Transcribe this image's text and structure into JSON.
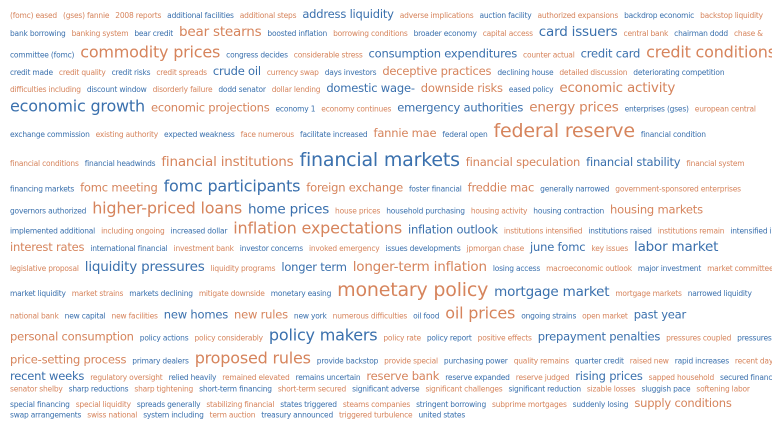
{
  "palette": {
    "blue": "#3a70ad",
    "orange": "#d6845c"
  },
  "rows": [
    [
      [
        "(fomc) eased",
        1,
        "orange"
      ],
      [
        "(gses) fannie",
        1,
        "orange"
      ],
      [
        "2008 reports",
        1,
        "orange"
      ],
      [
        "additional facilities",
        1,
        "blue"
      ],
      [
        "additional steps",
        1,
        "orange"
      ],
      [
        "address liquidity",
        3,
        "blue"
      ],
      [
        "adverse implications",
        1,
        "orange"
      ],
      [
        "auction facility",
        1,
        "blue"
      ],
      [
        "authorized expansions",
        1,
        "orange"
      ],
      [
        "backdrop economic",
        1,
        "blue"
      ],
      [
        "backstop liquidity",
        1,
        "orange"
      ]
    ],
    [
      [
        "bank borrowing",
        1,
        "blue"
      ],
      [
        "banking system",
        1,
        "orange"
      ],
      [
        "bear credit",
        1,
        "blue"
      ],
      [
        "bear stearns",
        4,
        "orange"
      ],
      [
        "boosted inflation",
        1,
        "blue"
      ],
      [
        "borrowing conditions",
        1,
        "orange"
      ],
      [
        "broader economy",
        1,
        "blue"
      ],
      [
        "capital access",
        1,
        "orange"
      ],
      [
        "card issuers",
        4,
        "blue"
      ],
      [
        "central bank",
        1,
        "orange"
      ],
      [
        "chairman dodd",
        1,
        "blue"
      ],
      [
        "chase &",
        1,
        "orange"
      ]
    ],
    [
      [
        "committee (fomc)",
        1,
        "blue"
      ],
      [
        "commodity prices",
        5,
        "orange"
      ],
      [
        "congress decides",
        1,
        "blue"
      ],
      [
        "considerable stress",
        1,
        "orange"
      ],
      [
        "consumption expenditures",
        3,
        "blue"
      ],
      [
        "counter actual",
        1,
        "orange"
      ],
      [
        "credit card",
        3,
        "blue"
      ],
      [
        "credit conditions",
        5,
        "orange"
      ]
    ],
    [
      [
        "credit made",
        1,
        "blue"
      ],
      [
        "credit quality",
        1,
        "orange"
      ],
      [
        "credit risks",
        1,
        "blue"
      ],
      [
        "credit spreads",
        1,
        "orange"
      ],
      [
        "crude oil",
        3,
        "blue"
      ],
      [
        "currency swap",
        1,
        "orange"
      ],
      [
        "days investors",
        1,
        "blue"
      ],
      [
        "deceptive practices",
        3,
        "orange"
      ],
      [
        "declining house",
        1,
        "blue"
      ],
      [
        "detailed discussion",
        1,
        "orange"
      ],
      [
        "deteriorating competition",
        1,
        "blue"
      ]
    ],
    [
      [
        "difficulties including",
        1,
        "orange"
      ],
      [
        "discount window",
        1,
        "blue"
      ],
      [
        "disorderly failure",
        1,
        "orange"
      ],
      [
        "dodd senator",
        1,
        "blue"
      ],
      [
        "dollar lending",
        1,
        "orange"
      ],
      [
        "domestic wage-",
        3,
        "blue"
      ],
      [
        "downside risks",
        3,
        "orange"
      ],
      [
        "eased policy",
        1,
        "blue"
      ],
      [
        "economic activity",
        4,
        "orange"
      ]
    ],
    [
      [
        "economic growth",
        5,
        "blue"
      ],
      [
        "economic projections",
        3,
        "orange"
      ],
      [
        "economy 1",
        1,
        "blue"
      ],
      [
        "economy continues",
        1,
        "orange"
      ],
      [
        "emergency authorities",
        3,
        "blue"
      ],
      [
        "energy prices",
        4,
        "orange"
      ],
      [
        "enterprises (gses)",
        1,
        "blue"
      ],
      [
        "european central",
        1,
        "orange"
      ]
    ],
    [
      [
        "exchange commission",
        1,
        "blue"
      ],
      [
        "existing authority",
        1,
        "orange"
      ],
      [
        "expected weakness",
        1,
        "blue"
      ],
      [
        "face numerous",
        1,
        "orange"
      ],
      [
        "facilitate increased",
        1,
        "blue"
      ],
      [
        "fannie mae",
        3,
        "orange"
      ],
      [
        "federal open",
        1,
        "blue"
      ],
      [
        "federal reserve",
        6,
        "orange"
      ],
      [
        "financial condition",
        1,
        "blue"
      ]
    ],
    [
      [
        "financial conditions",
        1,
        "orange"
      ],
      [
        "financial headwinds",
        1,
        "blue"
      ],
      [
        "financial institutions",
        4,
        "orange"
      ],
      [
        "financial markets",
        6,
        "blue"
      ],
      [
        "financial speculation",
        3,
        "orange"
      ],
      [
        "financial stability",
        3,
        "blue"
      ],
      [
        "financial system",
        1,
        "orange"
      ]
    ],
    [
      [
        "financing markets",
        1,
        "blue"
      ],
      [
        "fomc meeting",
        3,
        "orange"
      ],
      [
        "fomc participants",
        5,
        "blue"
      ],
      [
        "foreign exchange",
        3,
        "orange"
      ],
      [
        "foster financial",
        1,
        "blue"
      ],
      [
        "freddie mac",
        3,
        "orange"
      ],
      [
        "generally narrowed",
        1,
        "blue"
      ],
      [
        "government-sponsored enterprises",
        1,
        "orange"
      ]
    ],
    [
      [
        "governors authorized",
        1,
        "blue"
      ],
      [
        "higher-priced loans",
        5,
        "orange"
      ],
      [
        "home prices",
        4,
        "blue"
      ],
      [
        "house prices",
        1,
        "orange"
      ],
      [
        "household purchasing",
        1,
        "blue"
      ],
      [
        "housing activity",
        1,
        "orange"
      ],
      [
        "housing contraction",
        1,
        "blue"
      ],
      [
        "housing markets",
        3,
        "orange"
      ]
    ],
    [
      [
        "implemented additional",
        1,
        "blue"
      ],
      [
        "including ongoing",
        1,
        "orange"
      ],
      [
        "increased dollar",
        1,
        "blue"
      ],
      [
        "inflation expectations",
        5,
        "orange"
      ],
      [
        "inflation outlook",
        3,
        "blue"
      ],
      [
        "institutions intensified",
        1,
        "orange"
      ],
      [
        "institutions raised",
        1,
        "blue"
      ],
      [
        "institutions remain",
        1,
        "orange"
      ],
      [
        "intensified investor",
        1,
        "blue"
      ]
    ],
    [
      [
        "interest rates",
        3,
        "orange"
      ],
      [
        "international financial",
        1,
        "blue"
      ],
      [
        "investment bank",
        1,
        "orange"
      ],
      [
        "investor concerns",
        1,
        "blue"
      ],
      [
        "invoked emergency",
        1,
        "orange"
      ],
      [
        "issues developments",
        1,
        "blue"
      ],
      [
        "jpmorgan chase",
        1,
        "orange"
      ],
      [
        "june fomc",
        3,
        "blue"
      ],
      [
        "key issues",
        1,
        "orange"
      ],
      [
        "labor market",
        4,
        "blue"
      ]
    ],
    [
      [
        "legislative proposal",
        1,
        "orange"
      ],
      [
        "liquidity pressures",
        4,
        "blue"
      ],
      [
        "liquidity programs",
        1,
        "orange"
      ],
      [
        "longer term",
        3,
        "blue"
      ],
      [
        "longer-term inflation",
        4,
        "orange"
      ],
      [
        "losing access",
        1,
        "blue"
      ],
      [
        "macroeconomic outlook",
        1,
        "orange"
      ],
      [
        "major investment",
        1,
        "blue"
      ],
      [
        "market committee",
        1,
        "orange"
      ]
    ],
    [
      [
        "market liquidity",
        1,
        "blue"
      ],
      [
        "market strains",
        1,
        "orange"
      ],
      [
        "markets declining",
        1,
        "blue"
      ],
      [
        "mitigate downside",
        1,
        "orange"
      ],
      [
        "monetary easing",
        1,
        "blue"
      ],
      [
        "monetary policy",
        6,
        "orange"
      ],
      [
        "mortgage market",
        4,
        "blue"
      ],
      [
        "mortgage markets",
        1,
        "orange"
      ],
      [
        "narrowed liquidity",
        1,
        "blue"
      ]
    ],
    [
      [
        "national bank",
        1,
        "orange"
      ],
      [
        "new capital",
        1,
        "blue"
      ],
      [
        "new facilities",
        1,
        "orange"
      ],
      [
        "new homes",
        3,
        "blue"
      ],
      [
        "new rules",
        3,
        "orange"
      ],
      [
        "new york",
        1,
        "blue"
      ],
      [
        "numerous difficulties",
        1,
        "orange"
      ],
      [
        "oil food",
        1,
        "blue"
      ],
      [
        "oil prices",
        5,
        "orange"
      ],
      [
        "ongoing strains",
        1,
        "blue"
      ],
      [
        "open market",
        1,
        "orange"
      ],
      [
        "past year",
        3,
        "blue"
      ]
    ],
    [
      [
        "personal consumption",
        3,
        "orange"
      ],
      [
        "policy actions",
        1,
        "blue"
      ],
      [
        "policy considerably",
        1,
        "orange"
      ],
      [
        "policy makers",
        5,
        "blue"
      ],
      [
        "policy rate",
        1,
        "orange"
      ],
      [
        "policy report",
        1,
        "blue"
      ],
      [
        "positive effects",
        1,
        "orange"
      ],
      [
        "prepayment penalties",
        3,
        "blue"
      ],
      [
        "pressures coupled",
        1,
        "orange"
      ],
      [
        "pressures ebbed",
        1,
        "blue"
      ]
    ],
    [
      [
        "price-setting process",
        3,
        "orange"
      ],
      [
        "primary dealers",
        1,
        "blue"
      ],
      [
        "proposed rules",
        5,
        "orange"
      ],
      [
        "provide backstop",
        1,
        "blue"
      ],
      [
        "provide special",
        1,
        "orange"
      ],
      [
        "purchasing power",
        1,
        "blue"
      ],
      [
        "quality remains",
        1,
        "orange"
      ],
      [
        "quarter credit",
        1,
        "blue"
      ],
      [
        "raised new",
        1,
        "orange"
      ],
      [
        "rapid increases",
        1,
        "blue"
      ],
      [
        "recent days",
        1,
        "orange"
      ]
    ],
    [
      [
        "recent weeks",
        3,
        "blue"
      ],
      [
        "regulatory oversight",
        1,
        "orange"
      ],
      [
        "relied heavily",
        1,
        "blue"
      ],
      [
        "remained elevated",
        1,
        "orange"
      ],
      [
        "remains uncertain",
        1,
        "blue"
      ],
      [
        "reserve bank",
        3,
        "orange"
      ],
      [
        "reserve expanded",
        1,
        "blue"
      ],
      [
        "reserve judged",
        1,
        "orange"
      ],
      [
        "rising prices",
        3,
        "blue"
      ],
      [
        "sapped household",
        1,
        "orange"
      ],
      [
        "secured financing",
        1,
        "blue"
      ]
    ],
    [
      [
        "senator shelby",
        1,
        "orange"
      ],
      [
        "sharp reductions",
        1,
        "blue"
      ],
      [
        "sharp tightening",
        1,
        "orange"
      ],
      [
        "short-term financing",
        1,
        "blue"
      ],
      [
        "short-term secured",
        1,
        "orange"
      ],
      [
        "significant adverse",
        1,
        "blue"
      ],
      [
        "significant challenges",
        1,
        "orange"
      ],
      [
        "significant reduction",
        1,
        "blue"
      ],
      [
        "sizable losses",
        1,
        "orange"
      ],
      [
        "sluggish pace",
        1,
        "blue"
      ],
      [
        "softening labor",
        1,
        "orange"
      ]
    ],
    [
      [
        "special financing",
        1,
        "blue"
      ],
      [
        "special liquidity",
        1,
        "orange"
      ],
      [
        "spreads generally",
        1,
        "blue"
      ],
      [
        "stabilizing financial",
        1,
        "orange"
      ],
      [
        "states triggered",
        1,
        "blue"
      ],
      [
        "steams companies",
        1,
        "orange"
      ],
      [
        "stringent borrowing",
        1,
        "blue"
      ],
      [
        "subprime mortgages",
        1,
        "orange"
      ],
      [
        "suddenly losing",
        1,
        "blue"
      ],
      [
        "supply conditions",
        3,
        "orange"
      ]
    ],
    [
      [
        "swap arrangements",
        1,
        "blue"
      ],
      [
        "swiss national",
        1,
        "orange"
      ],
      [
        "system including",
        1,
        "blue"
      ],
      [
        "term auction",
        1,
        "orange"
      ],
      [
        "treasury announced",
        1,
        "blue"
      ],
      [
        "triggered turbulence",
        1,
        "orange"
      ],
      [
        "united states",
        1,
        "blue"
      ]
    ]
  ]
}
